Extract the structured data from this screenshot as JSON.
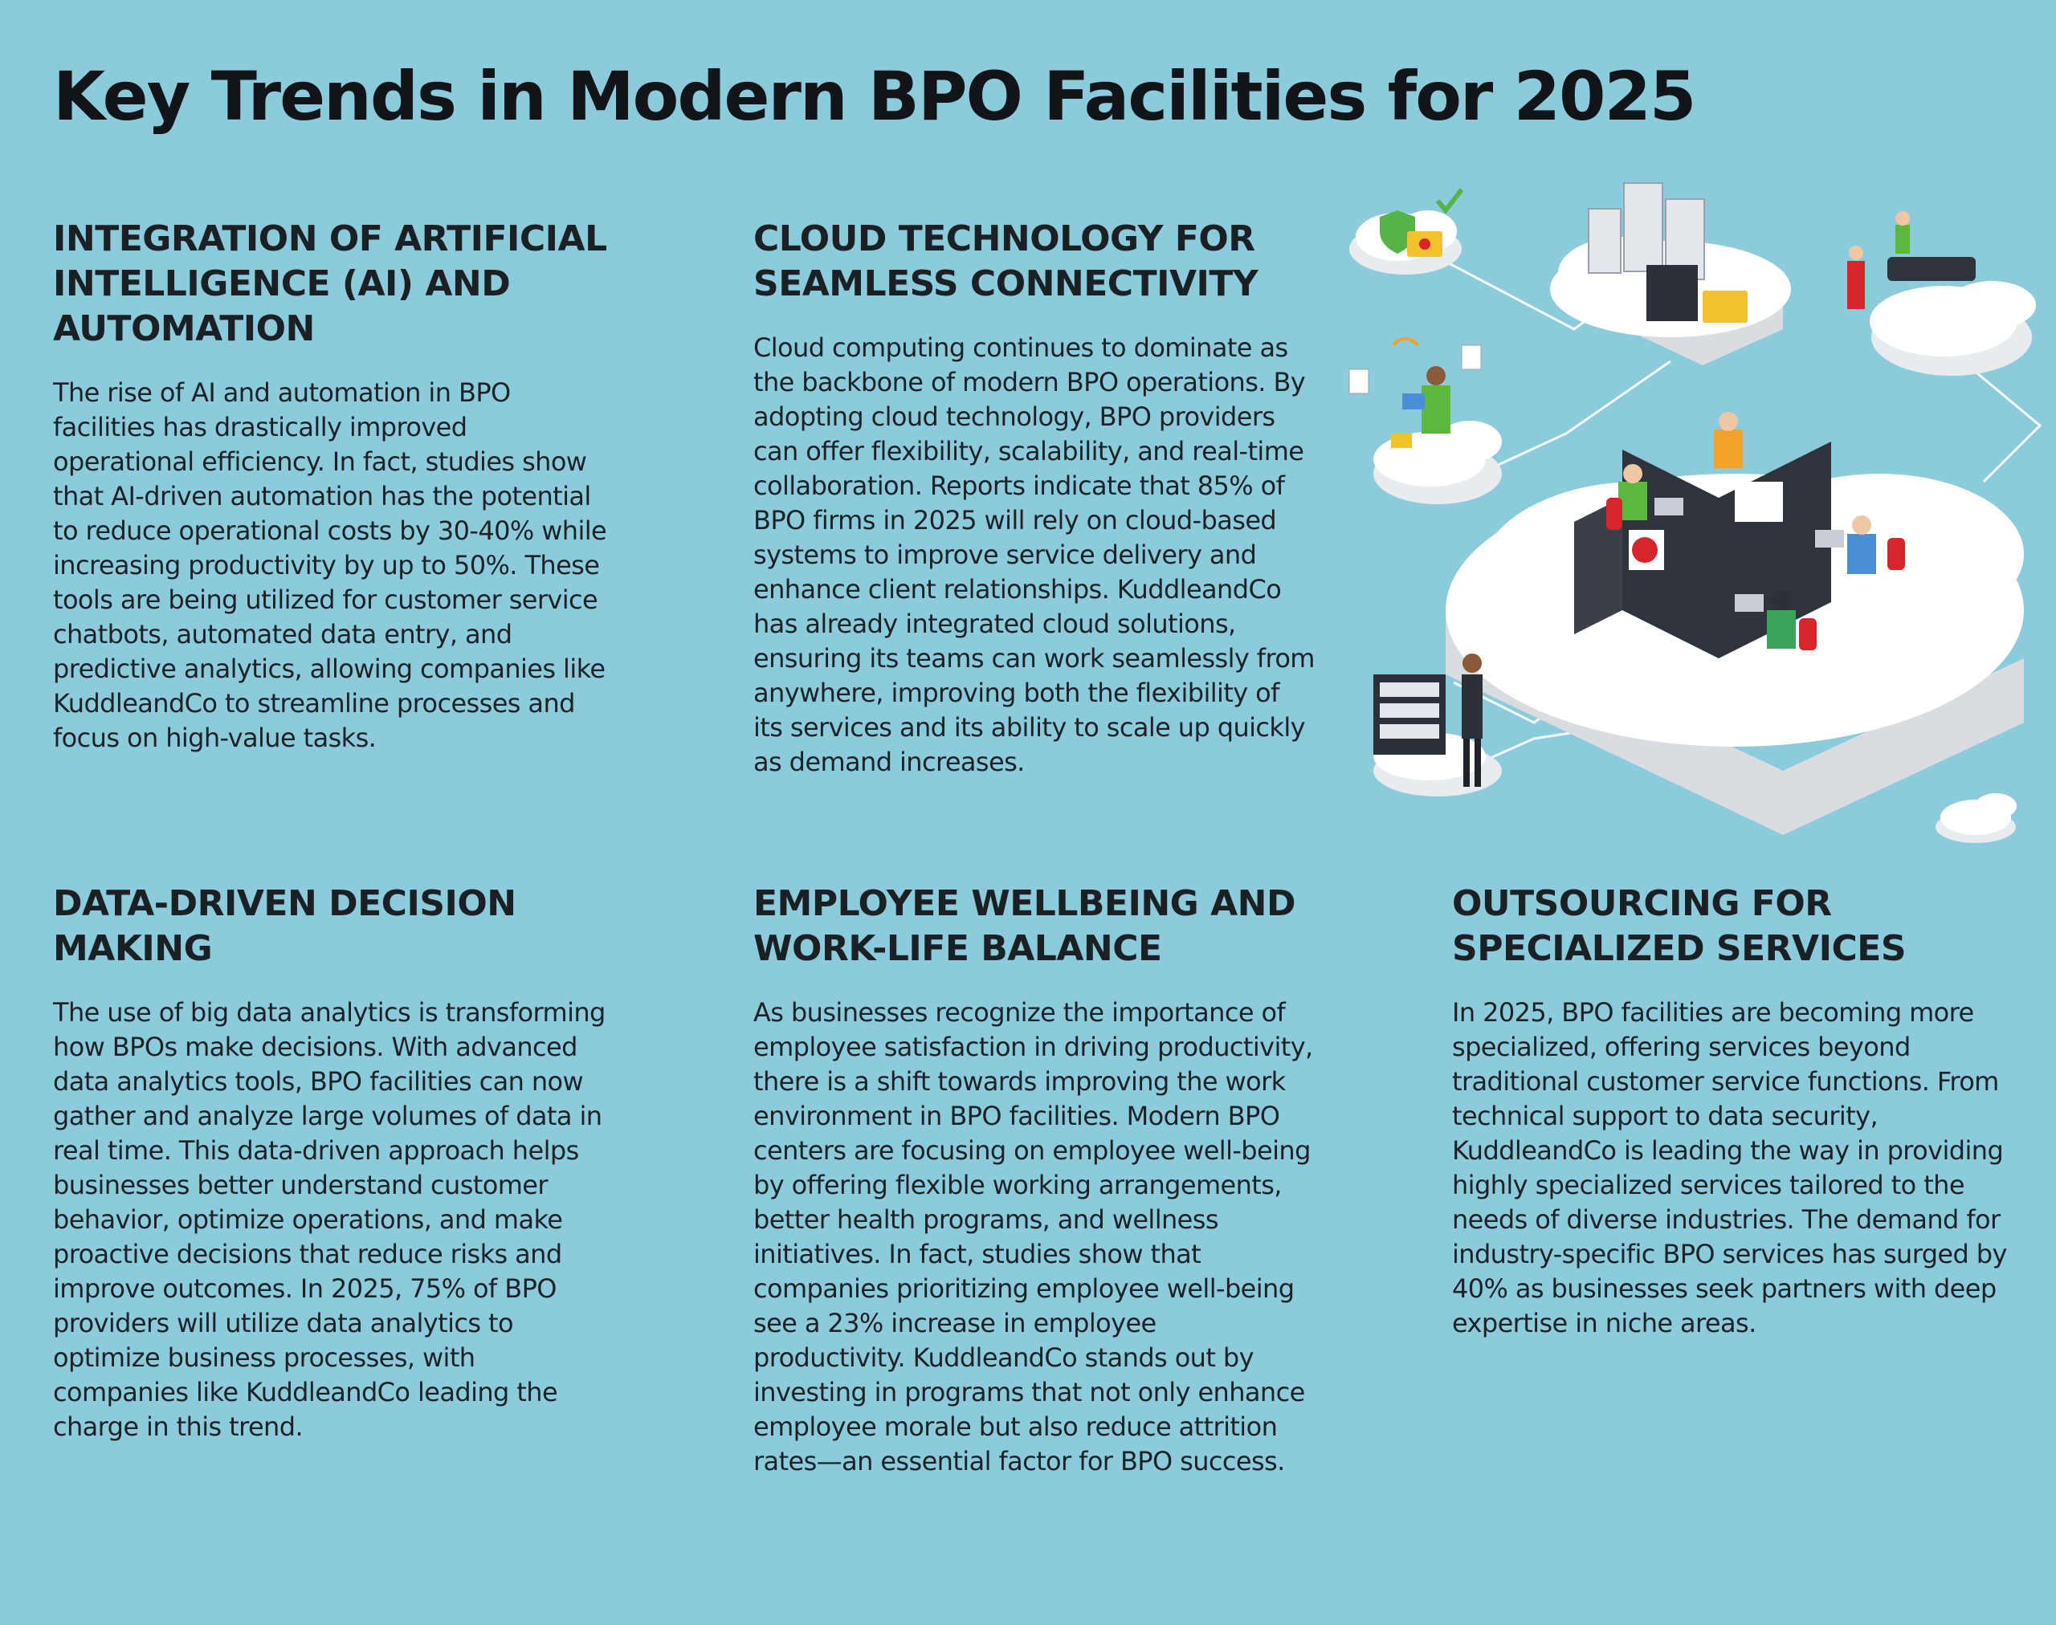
{
  "page": {
    "title": "Key Trends in Modern BPO Facilities for 2025"
  },
  "sections": [
    {
      "heading": "INTEGRATION OF ARTIFICIAL INTELLIGENCE (AI) AND AUTOMATION",
      "body": "The rise of AI and automation in BPO facilities has drastically improved operational efficiency. In fact, studies show that AI-driven automation has the potential to reduce operational costs by 30-40% while increasing productivity by up to 50%. These tools are being utilized for customer service chatbots, automated data entry, and predictive analytics, allowing companies like KuddleandCo to streamline processes and focus on high-value tasks."
    },
    {
      "heading": "CLOUD TECHNOLOGY FOR SEAMLESS CONNECTIVITY",
      "body": "Cloud computing continues to dominate as the backbone of modern BPO operations. By adopting cloud technology, BPO providers can offer flexibility, scalability, and real-time collaboration. Reports indicate that 85% of BPO firms in 2025 will rely on cloud-based systems to improve service delivery and enhance client relationships. KuddleandCo has already integrated cloud solutions, ensuring its teams can work seamlessly from anywhere, improving both the flexibility of its services and its ability to scale up quickly as demand increases."
    },
    {
      "heading": "DATA-DRIVEN DECISION MAKING",
      "body": "The use of big data analytics is transforming how BPOs make decisions. With advanced data analytics tools, BPO facilities can now gather and analyze large volumes of data in real time. This data-driven approach helps businesses better understand customer behavior, optimize operations, and make proactive decisions that reduce risks and improve outcomes. In 2025, 75% of BPO providers will utilize data analytics to optimize business processes, with companies like KuddleandCo leading the charge in this trend."
    },
    {
      "heading": "EMPLOYEE WELLBEING AND WORK-LIFE BALANCE",
      "body": "As businesses recognize the importance of employee satisfaction in driving productivity, there is a shift towards improving the work environment in BPO facilities. Modern BPO centers are focusing on employee well-being by offering flexible working arrangements, better health programs, and wellness initiatives. In fact, studies show that companies prioritizing employee well-being see a 23% increase in employee productivity. KuddleandCo stands out by investing in programs that not only enhance employee morale but also reduce attrition rates—an essential factor for BPO success."
    },
    {
      "heading": "OUTSOURCING FOR SPECIALIZED SERVICES",
      "body": "In 2025, BPO facilities are becoming more specialized, offering services beyond traditional customer service functions. From technical support to data security, KuddleandCo is leading the way in providing highly specialized services tailored to the needs of diverse industries. The demand for industry-specific BPO services has surged by 40% as businesses seek partners with deep expertise in niche areas."
    }
  ],
  "illustration": {
    "icon": "isometric-cloud-office-icon",
    "colors": {
      "background": "#8ccbdc",
      "cloud": "#ffffff",
      "cloud_shadow": "#d9dde2",
      "server": "#e3e6ea",
      "server_dark": "#2c3038",
      "desk": "#2f333b",
      "chair": "#d7262b",
      "shirt_green": "#5cb83c",
      "shirt_orange": "#f2a22a",
      "shirt_blue": "#4a8fd6",
      "folder": "#f2c12e",
      "shield": "#56b447"
    }
  }
}
